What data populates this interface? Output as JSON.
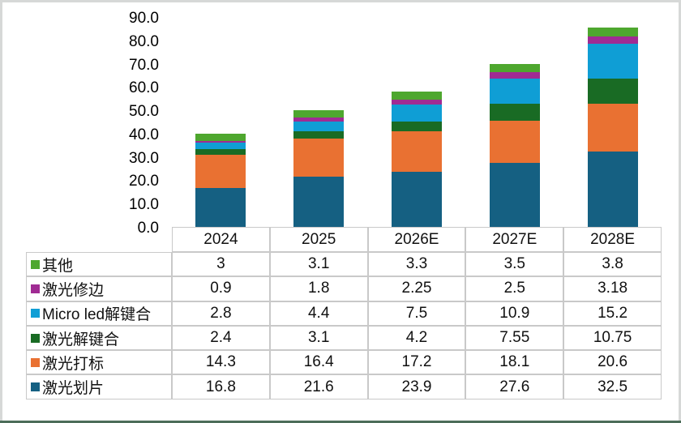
{
  "frame": {
    "border_color": "#d6d8d7",
    "bottom_edge_color": "#4c6d59"
  },
  "chart_data": {
    "type": "bar",
    "stacked": true,
    "title": "",
    "xlabel": "",
    "ylabel": "",
    "categories": [
      "2024",
      "2025",
      "2026E",
      "2027E",
      "2028E"
    ],
    "series": [
      {
        "name": "激光划片",
        "color": "#156082",
        "values": [
          16.8,
          21.6,
          23.9,
          27.6,
          32.5
        ]
      },
      {
        "name": "激光打标",
        "color": "#E97132",
        "values": [
          14.3,
          16.4,
          17.2,
          18.1,
          20.6
        ]
      },
      {
        "name": "激光解键合",
        "color": "#196B24",
        "values": [
          2.4,
          3.1,
          4.2,
          7.55,
          10.75
        ]
      },
      {
        "name": "Micro led解键合",
        "color": "#0F9ED5",
        "values": [
          2.8,
          4.4,
          7.5,
          10.9,
          15.2
        ]
      },
      {
        "name": "激光修边",
        "color": "#A02B93",
        "values": [
          0.9,
          1.8,
          2.25,
          2.5,
          3.18
        ]
      },
      {
        "name": "其他",
        "color": "#4EA72E",
        "values": [
          3,
          3.1,
          3.3,
          3.5,
          3.8
        ]
      }
    ],
    "y_ticks": [
      "90.0",
      "80.0",
      "70.0",
      "60.0",
      "50.0",
      "40.0",
      "30.0",
      "20.0",
      "10.0",
      "0.0"
    ],
    "ylim": [
      0,
      90
    ],
    "grid": false,
    "legend_position": "table-left-column"
  },
  "table": {
    "header": [
      "2024",
      "2025",
      "2026E",
      "2027E",
      "2028E"
    ],
    "rows": [
      {
        "label": "其他",
        "swatch_color": "#4EA72E",
        "values": [
          "3",
          "3.1",
          "3.3",
          "3.5",
          "3.8"
        ]
      },
      {
        "label": "激光修边",
        "swatch_color": "#A02B93",
        "values": [
          "0.9",
          "1.8",
          "2.25",
          "2.5",
          "3.18"
        ]
      },
      {
        "label": "Micro led解键合",
        "swatch_color": "#0F9ED5",
        "values": [
          "2.8",
          "4.4",
          "7.5",
          "10.9",
          "15.2"
        ]
      },
      {
        "label": "激光解键合",
        "swatch_color": "#196B24",
        "values": [
          "2.4",
          "3.1",
          "4.2",
          "7.55",
          "10.75"
        ]
      },
      {
        "label": "激光打标",
        "swatch_color": "#E97132",
        "values": [
          "14.3",
          "16.4",
          "17.2",
          "18.1",
          "20.6"
        ]
      },
      {
        "label": "激光划片",
        "swatch_color": "#156082",
        "values": [
          "16.8",
          "21.6",
          "23.9",
          "27.6",
          "32.5"
        ]
      }
    ]
  }
}
